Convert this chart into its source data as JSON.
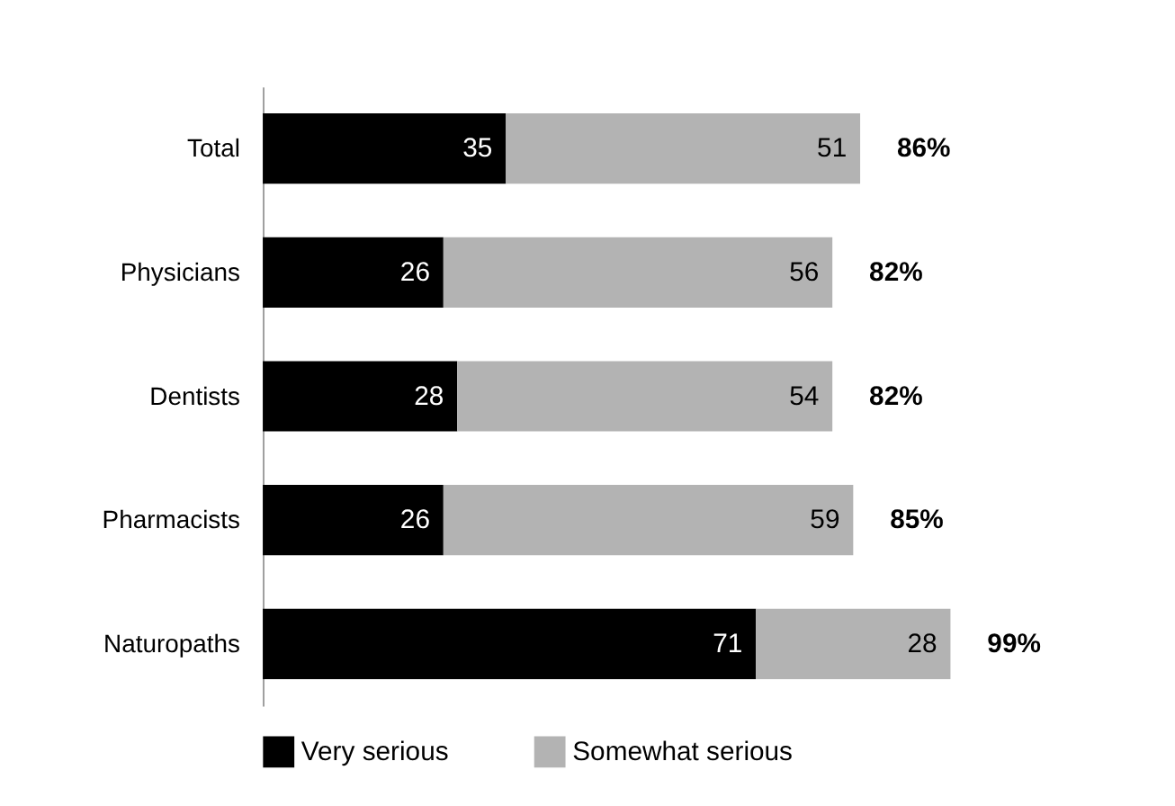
{
  "chart_data": {
    "type": "bar",
    "orientation": "horizontal",
    "stacked": true,
    "categories": [
      "Total",
      "Physicians",
      "Dentists",
      "Pharmacists",
      "Naturopaths"
    ],
    "series": [
      {
        "name": "Very serious",
        "color": "#000000",
        "values": [
          35,
          26,
          28,
          26,
          71
        ]
      },
      {
        "name": "Somewhat serious",
        "color": "#b3b3b3",
        "values": [
          51,
          56,
          54,
          59,
          28
        ]
      }
    ],
    "data_labels": true,
    "totals": [
      "86%",
      "82%",
      "82%",
      "85%",
      "99%"
    ],
    "legend": "bottom",
    "grid": false,
    "tick_labels": "y"
  }
}
